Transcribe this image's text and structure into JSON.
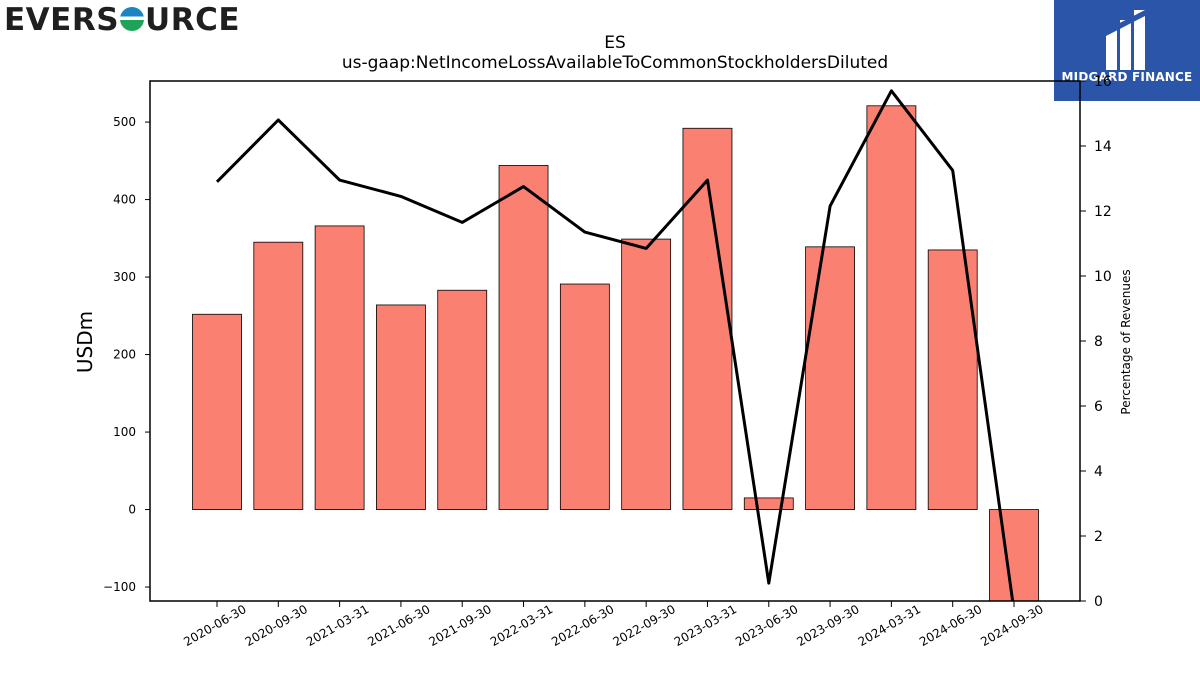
{
  "logos": {
    "left_brand": "EVERSOURCE",
    "left_brand_before": "EVERS",
    "left_brand_after": "URCE",
    "right_brand": "MIDGARD FINANCE",
    "left_colors": [
      "#1b84c3",
      "#1ea35a"
    ],
    "right_bg": "#2a55a8"
  },
  "chart_data": {
    "type": "bar",
    "title": "ES",
    "subtitle": "us-gaap:NetIncomeLossAvailableToCommonStockholdersDiluted",
    "ylabel": "USDm",
    "y2label": "Percentage of Revenues",
    "categories": [
      "2020-06-30",
      "2020-09-30",
      "2021-03-31",
      "2021-06-30",
      "2021-09-30",
      "2022-03-31",
      "2022-06-30",
      "2022-09-30",
      "2023-03-31",
      "2023-06-30",
      "2023-09-30",
      "2024-03-31",
      "2024-06-30",
      "2024-09-30"
    ],
    "series": [
      {
        "axis": "left",
        "type": "bar",
        "color": "#fa8072",
        "values": [
          252,
          345,
          366,
          264,
          283,
          444,
          291,
          349,
          492,
          15,
          339,
          521,
          335,
          -118
        ]
      },
      {
        "axis": "right",
        "type": "line",
        "color": "#000000",
        "values": [
          12.9,
          14.8,
          12.95,
          12.45,
          11.65,
          12.75,
          11.35,
          10.85,
          12.95,
          0.55,
          12.15,
          15.7,
          13.25,
          -0.3
        ]
      }
    ],
    "ylim": [
      -118,
      553
    ],
    "yticks": [
      -100,
      0,
      100,
      200,
      300,
      400,
      500
    ],
    "y2lim": [
      0,
      16
    ],
    "y2ticks": [
      0,
      2,
      4,
      6,
      8,
      10,
      12,
      14,
      16
    ],
    "grid": false
  }
}
